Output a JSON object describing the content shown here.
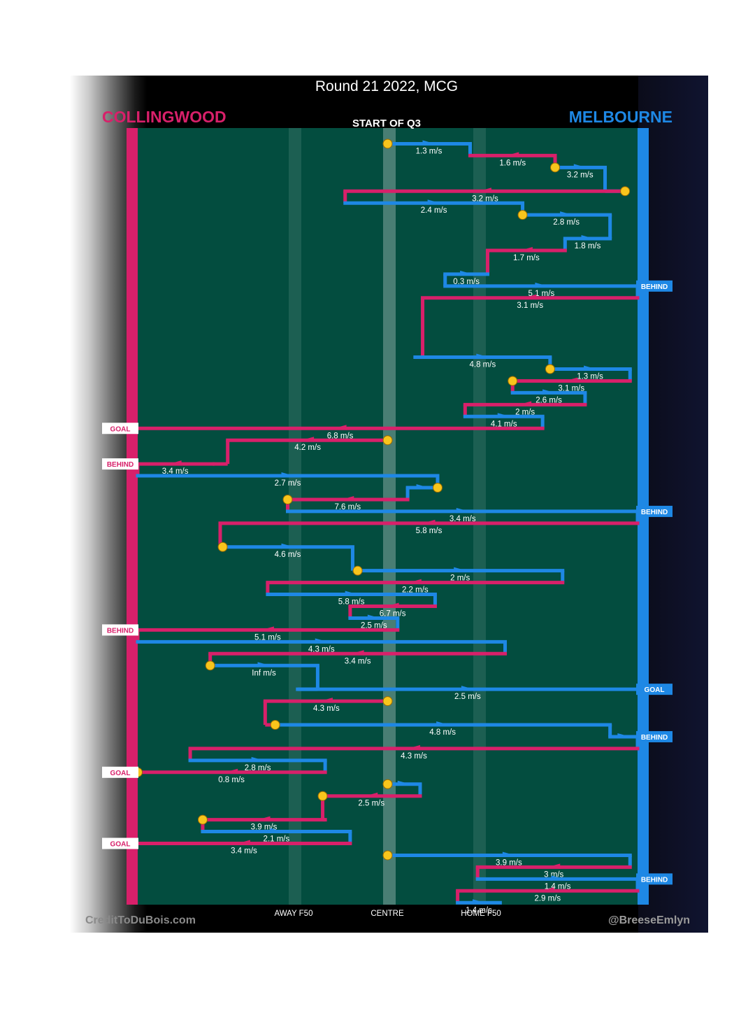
{
  "title": "Round 21 2022, MCG",
  "home_team": "COLLINGWOOD",
  "away_team": "MELBOURNE",
  "section_label": "START OF Q3",
  "colors": {
    "collingwood": "#d8206a",
    "melbourne": "#1e88e5",
    "field": "#034d3f",
    "stoppage": "#f8c51c"
  },
  "axis_labels": {
    "away_f50": "AWAY F50",
    "centre": "CENTRE",
    "home_f50": "HOME F50"
  },
  "credits": {
    "left": "CreditToDuBois.com",
    "right": "@BreeseEmlyn"
  },
  "chart_data": {
    "type": "line",
    "x_scale": "field position, 0 = Collingwood goal line, 1 = Melbourne goal line",
    "y_scale": "chain sequence step",
    "ylim": [
      0,
      71
    ],
    "reference_lines": [
      {
        "x": 0.31,
        "label": "AWAY F50"
      },
      {
        "x": 0.5,
        "label": "CENTRE"
      },
      {
        "x": 0.685,
        "label": "HOME F50"
      }
    ],
    "chains": [
      {
        "team": "M",
        "y": 1,
        "x1": 0.5,
        "x2": 0.665,
        "speed": "1.3 m/s",
        "stop": "start"
      },
      {
        "team": "C",
        "y": 2,
        "x1": 0.665,
        "x2": 0.835,
        "speed": "1.6 m/s"
      },
      {
        "team": "M",
        "y": 3,
        "x1": 0.835,
        "x2": 0.935,
        "speed": "3.2 m/s",
        "stop": "start"
      },
      {
        "team": "C",
        "y": 5,
        "x1": 0.415,
        "x2": 0.975,
        "speed": "3.2 m/s",
        "stop": "start"
      },
      {
        "team": "M",
        "y": 6,
        "x1": 0.415,
        "x2": 0.77,
        "speed": "2.4 m/s"
      },
      {
        "team": "M",
        "y": 7,
        "x1": 0.77,
        "x2": 0.945,
        "speed": "2.8 m/s",
        "stop": "start"
      },
      {
        "team": "M",
        "y": 9,
        "x1": 0.855,
        "x2": 0.945,
        "speed": "1.8 m/s"
      },
      {
        "team": "C",
        "y": 10,
        "x1": 0.7,
        "x2": 0.855,
        "speed": "1.7 m/s"
      },
      {
        "team": "M",
        "y": 12,
        "x1": 0.615,
        "x2": 0.7,
        "speed": "0.3 m/s"
      },
      {
        "team": "M",
        "y": 13,
        "x1": 0.615,
        "x2": 1.0,
        "speed": "5.1 m/s",
        "outcome": "BEHIND"
      },
      {
        "team": "C",
        "y": 14,
        "x1": 0.57,
        "x2": 1.0,
        "speed": "3.1 m/s"
      },
      {
        "team": "M",
        "y": 19,
        "x1": 0.555,
        "x2": 0.825,
        "speed": "4.8 m/s"
      },
      {
        "team": "M",
        "y": 20,
        "x1": 0.825,
        "x2": 0.985,
        "speed": "1.3 m/s",
        "stop": "start"
      },
      {
        "team": "C",
        "y": 21,
        "x1": 0.75,
        "x2": 0.985,
        "speed": "3.1 m/s",
        "stop": "end"
      },
      {
        "team": "M",
        "y": 22,
        "x1": 0.75,
        "x2": 0.895,
        "speed": "2.6 m/s"
      },
      {
        "team": "C",
        "y": 23,
        "x1": 0.655,
        "x2": 0.895,
        "speed": "2 m/s"
      },
      {
        "team": "M",
        "y": 24,
        "x1": 0.655,
        "x2": 0.81,
        "speed": "4.1 m/s"
      },
      {
        "team": "C",
        "y": 25,
        "x1": 0.0,
        "x2": 0.81,
        "speed": "6.8 m/s",
        "outcome": "GOAL"
      },
      {
        "team": "C",
        "y": 26,
        "x1": 0.18,
        "x2": 0.5,
        "speed": "4.2 m/s",
        "stop": "start"
      },
      {
        "team": "C",
        "y": 28,
        "x1": 0.0,
        "x2": 0.15,
        "speed": "3.4 m/s",
        "outcome": "BEHIND"
      },
      {
        "team": "M",
        "y": 29,
        "x1": 0.0,
        "x2": 0.6,
        "speed": "2.7 m/s"
      },
      {
        "team": "M",
        "y": 30,
        "x1": 0.54,
        "x2": 0.6,
        "speed": "",
        "stop": "end"
      },
      {
        "team": "C",
        "y": 31,
        "x1": 0.3,
        "x2": 0.54,
        "speed": "7.6 m/s",
        "stop": "end"
      },
      {
        "team": "M",
        "y": 32,
        "x1": 0.3,
        "x2": 1.0,
        "speed": "3.4 m/s",
        "outcome": "BEHIND"
      },
      {
        "team": "C",
        "y": 33,
        "x1": 0.165,
        "x2": 1.0,
        "speed": "5.8 m/s"
      },
      {
        "team": "M",
        "y": 35,
        "x1": 0.17,
        "x2": 0.43,
        "speed": "4.6 m/s",
        "stop": "start"
      },
      {
        "team": "M",
        "y": 37,
        "x1": 0.44,
        "x2": 0.85,
        "speed": "2 m/s",
        "stop": "start"
      },
      {
        "team": "C",
        "y": 38,
        "x1": 0.26,
        "x2": 0.85,
        "speed": "2.2 m/s"
      },
      {
        "team": "M",
        "y": 39,
        "x1": 0.26,
        "x2": 0.595,
        "speed": "5.8 m/s"
      },
      {
        "team": "C",
        "y": 40,
        "x1": 0.425,
        "x2": 0.595,
        "speed": "6.7 m/s"
      },
      {
        "team": "M",
        "y": 41,
        "x1": 0.425,
        "x2": 0.52,
        "speed": "2.5 m/s"
      },
      {
        "team": "C",
        "y": 42,
        "x1": 0.0,
        "x2": 0.52,
        "speed": "5.1 m/s",
        "outcome": "BEHIND"
      },
      {
        "team": "M",
        "y": 43,
        "x1": 0.0,
        "x2": 0.735,
        "speed": "4.3 m/s"
      },
      {
        "team": "C",
        "y": 44,
        "x1": 0.145,
        "x2": 0.735,
        "speed": "3.4 m/s"
      },
      {
        "team": "M",
        "y": 45,
        "x1": 0.145,
        "x2": 0.36,
        "speed": "Inf m/s",
        "stop": "start"
      },
      {
        "team": "M",
        "y": 47,
        "x1": 0.32,
        "x2": 1.0,
        "speed": "2.5 m/s",
        "outcome": "GOAL"
      },
      {
        "team": "C",
        "y": 48,
        "x1": 0.255,
        "x2": 0.5,
        "speed": "4.3 m/s",
        "stop": "start"
      },
      {
        "team": "M",
        "y": 50,
        "x1": 0.275,
        "x2": 0.945,
        "speed": "4.8 m/s",
        "stop": "start"
      },
      {
        "team": "M",
        "y": 51,
        "x1": 0.945,
        "x2": 1.0,
        "speed": "",
        "outcome": "BEHIND"
      },
      {
        "team": "C",
        "y": 52,
        "x1": 0.105,
        "x2": 1.0,
        "speed": "4.3 m/s"
      },
      {
        "team": "M",
        "y": 53,
        "x1": 0.105,
        "x2": 0.375,
        "speed": "2.8 m/s"
      },
      {
        "team": "C",
        "y": 54,
        "x1": 0.0,
        "x2": 0.375,
        "speed": "0.8 m/s",
        "outcome": "GOAL",
        "stop": "end"
      },
      {
        "team": "M",
        "y": 55,
        "x1": 0.5,
        "x2": 0.565,
        "speed": "",
        "stop": "start"
      },
      {
        "team": "C",
        "y": 56,
        "x1": 0.37,
        "x2": 0.565,
        "speed": "2.5 m/s",
        "stop": "end"
      },
      {
        "team": "C",
        "y": 58,
        "x1": 0.13,
        "x2": 0.375,
        "speed": "3.9 m/s",
        "stop": "end"
      },
      {
        "team": "M",
        "y": 59,
        "x1": 0.13,
        "x2": 0.425,
        "speed": "2.1 m/s"
      },
      {
        "team": "C",
        "y": 60,
        "x1": 0.0,
        "x2": 0.425,
        "speed": "3.4 m/s",
        "outcome": "GOAL"
      },
      {
        "team": "M",
        "y": 61,
        "x1": 0.5,
        "x2": 0.985,
        "speed": "3.9 m/s",
        "stop": "start"
      },
      {
        "team": "C",
        "y": 62,
        "x1": 0.68,
        "x2": 0.985,
        "speed": "3 m/s"
      },
      {
        "team": "M",
        "y": 63,
        "x1": 0.68,
        "x2": 1.0,
        "speed": "1.4 m/s",
        "outcome": "BEHIND"
      },
      {
        "team": "C",
        "y": 64,
        "x1": 0.64,
        "x2": 1.0,
        "speed": "2.9 m/s"
      },
      {
        "team": "M",
        "y": 65,
        "x1": 0.64,
        "x2": 0.725,
        "speed": "1.4 m/s"
      }
    ]
  }
}
